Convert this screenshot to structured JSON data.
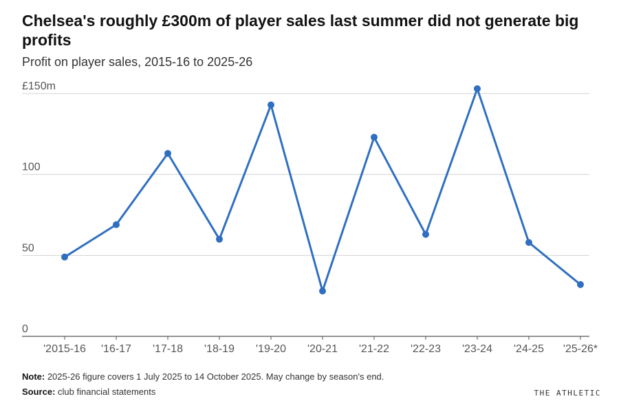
{
  "chart_data": {
    "type": "line",
    "title": "Chelsea's roughly £300m of player sales last summer did not generate big profits",
    "subtitle": "Profit on player sales, 2015-16 to 2025-26",
    "xlabel": "",
    "ylabel": "",
    "categories": [
      "'2015-16",
      "'16-17",
      "'17-18",
      "'18-19",
      "'19-20",
      "'20-21",
      "'21-22",
      "'22-23",
      "'23-24",
      "'24-25",
      "'25-26*"
    ],
    "series": [
      {
        "name": "Profit on player sales",
        "values": [
          49,
          69,
          113,
          60,
          143,
          28,
          123,
          63,
          153,
          58,
          32
        ]
      }
    ],
    "ylim": [
      0,
      150
    ],
    "yticks": [
      0,
      50,
      100,
      150
    ],
    "ytick_labels": [
      "0",
      "50",
      "100",
      "£150m"
    ],
    "grid": true,
    "legend": "none"
  },
  "colors": {
    "line": "#2f6fc1",
    "grid": "#d3d3d3",
    "axis": "#555555"
  },
  "footer": {
    "note_label": "Note:",
    "note_text": " 2025-26 figure covers 1 July 2025 to 14 October 2025. May change by season's end.",
    "source_label": "Source:",
    "source_text": " club financial statements",
    "brand": "THE ATHLETIC"
  }
}
